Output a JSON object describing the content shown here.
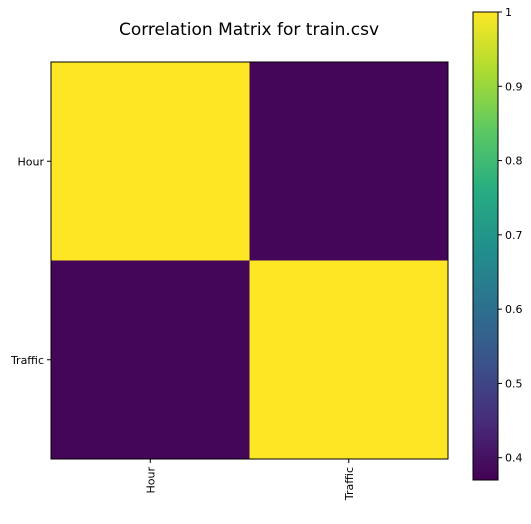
{
  "chart_data": {
    "type": "heatmap",
    "title": "Correlation Matrix for train.csv",
    "xlabels": [
      "Hour",
      "Traffic"
    ],
    "ylabels": [
      "Hour",
      "Traffic"
    ],
    "values": [
      [
        1.0,
        0.38
      ],
      [
        0.38,
        1.0
      ]
    ],
    "colormap": "viridis",
    "colorbar": {
      "min": 0.37,
      "max": 1.0,
      "ticks": [
        0.4,
        0.5,
        0.6,
        0.7,
        0.8,
        0.9,
        1.0
      ],
      "tick_labels": [
        "0.4",
        "0.5",
        "0.6",
        "0.7",
        "0.8",
        "0.9",
        "1"
      ]
    },
    "x_tick_rotation": "vertical"
  }
}
